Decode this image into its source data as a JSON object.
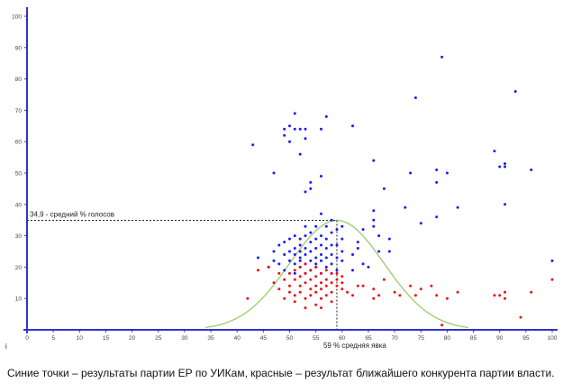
{
  "chart_data": {
    "type": "scatter",
    "title": "",
    "xlabel": "",
    "ylabel": "",
    "xlim": [
      0,
      100
    ],
    "ylim": [
      0,
      100
    ],
    "x_ticks": [
      0,
      5,
      10,
      15,
      20,
      25,
      30,
      35,
      40,
      45,
      50,
      55,
      60,
      65,
      70,
      75,
      80,
      85,
      90,
      95,
      100
    ],
    "y_ticks": [
      10,
      20,
      30,
      40,
      50,
      60,
      70,
      80,
      90,
      100
    ],
    "grid": false,
    "legend": "none",
    "colors": {
      "axis": "#3333cc",
      "blue": "#1a1aff",
      "red": "#ee1111",
      "curve": "#99cc66",
      "guide": "#222222"
    },
    "annotations": {
      "mean_vote_label": "34,9 - средний % голосов",
      "mean_vote_y": 34.9,
      "mean_turnout_label": "59 % средняя явка",
      "mean_turnout_x": 59,
      "corner_mark": "i"
    },
    "curve": {
      "mean": 59,
      "sd": 9,
      "peak": 34.9
    },
    "series": [
      {
        "color": "blue",
        "points": [
          [
            43,
            59
          ],
          [
            47,
            50
          ],
          [
            49,
            64
          ],
          [
            49,
            62
          ],
          [
            50,
            65
          ],
          [
            50,
            60
          ],
          [
            51,
            64
          ],
          [
            51,
            69
          ],
          [
            52,
            64
          ],
          [
            53,
            64
          ],
          [
            53,
            61
          ],
          [
            52,
            56
          ],
          [
            53,
            44
          ],
          [
            54,
            45
          ],
          [
            54,
            47
          ],
          [
            56,
            64
          ],
          [
            57,
            68
          ],
          [
            56,
            49
          ],
          [
            62,
            65
          ],
          [
            66,
            54
          ],
          [
            68,
            45
          ],
          [
            72,
            39
          ],
          [
            73,
            50
          ],
          [
            74,
            74
          ],
          [
            75,
            34
          ],
          [
            78,
            51
          ],
          [
            78,
            47
          ],
          [
            79,
            87
          ],
          [
            80,
            50
          ],
          [
            78,
            36
          ],
          [
            82,
            39
          ],
          [
            89,
            57
          ],
          [
            90,
            52
          ],
          [
            91,
            52
          ],
          [
            91,
            53
          ],
          [
            91,
            40
          ],
          [
            93,
            76
          ],
          [
            96,
            51
          ],
          [
            100,
            22
          ],
          [
            44,
            23
          ],
          [
            46,
            20
          ],
          [
            47,
            25
          ],
          [
            47,
            22
          ],
          [
            48,
            27
          ],
          [
            48,
            21
          ],
          [
            49,
            24
          ],
          [
            49,
            19
          ],
          [
            49,
            28
          ],
          [
            50,
            22
          ],
          [
            50,
            25
          ],
          [
            50,
            29
          ],
          [
            51,
            18
          ],
          [
            51,
            21
          ],
          [
            51,
            24
          ],
          [
            51,
            26
          ],
          [
            51,
            30
          ],
          [
            52,
            20
          ],
          [
            52,
            23
          ],
          [
            52,
            25
          ],
          [
            52,
            27
          ],
          [
            52,
            29
          ],
          [
            52,
            22
          ],
          [
            53,
            18
          ],
          [
            53,
            21
          ],
          [
            53,
            24
          ],
          [
            53,
            26
          ],
          [
            53,
            30
          ],
          [
            53,
            33
          ],
          [
            54,
            19
          ],
          [
            54,
            22
          ],
          [
            54,
            25
          ],
          [
            54,
            28
          ],
          [
            54,
            31
          ],
          [
            55,
            20
          ],
          [
            55,
            23
          ],
          [
            55,
            26
          ],
          [
            55,
            29
          ],
          [
            55,
            33
          ],
          [
            55,
            21
          ],
          [
            56,
            18
          ],
          [
            56,
            22
          ],
          [
            56,
            24
          ],
          [
            56,
            27
          ],
          [
            56,
            30
          ],
          [
            56,
            37
          ],
          [
            57,
            20
          ],
          [
            57,
            23
          ],
          [
            57,
            26
          ],
          [
            57,
            29
          ],
          [
            57,
            33
          ],
          [
            58,
            18
          ],
          [
            58,
            21
          ],
          [
            58,
            24
          ],
          [
            58,
            27
          ],
          [
            58,
            31
          ],
          [
            58,
            35
          ],
          [
            59,
            19
          ],
          [
            59,
            23
          ],
          [
            59,
            27
          ],
          [
            59,
            32
          ],
          [
            60,
            22
          ],
          [
            60,
            25
          ],
          [
            60,
            29
          ],
          [
            60,
            33
          ],
          [
            62,
            19
          ],
          [
            62,
            24
          ],
          [
            63,
            28
          ],
          [
            63,
            26
          ],
          [
            64,
            21
          ],
          [
            64,
            32
          ],
          [
            65,
            20
          ],
          [
            66,
            35
          ],
          [
            66,
            38
          ],
          [
            66,
            33
          ],
          [
            67,
            25
          ],
          [
            67,
            30
          ],
          [
            69,
            29
          ],
          [
            69,
            25
          ]
        ]
      },
      {
        "color": "red",
        "points": [
          [
            42,
            10
          ],
          [
            44,
            19
          ],
          [
            46,
            20
          ],
          [
            47,
            15
          ],
          [
            48,
            13
          ],
          [
            48,
            18
          ],
          [
            49,
            16
          ],
          [
            49,
            10
          ],
          [
            50,
            14
          ],
          [
            50,
            18
          ],
          [
            50,
            12
          ],
          [
            51,
            16
          ],
          [
            51,
            19
          ],
          [
            51,
            11
          ],
          [
            51,
            9
          ],
          [
            52,
            14
          ],
          [
            52,
            17
          ],
          [
            52,
            20
          ],
          [
            52,
            12
          ],
          [
            53,
            15
          ],
          [
            53,
            18
          ],
          [
            53,
            21
          ],
          [
            53,
            10
          ],
          [
            53,
            7
          ],
          [
            54,
            13
          ],
          [
            54,
            16
          ],
          [
            54,
            19
          ],
          [
            54,
            11
          ],
          [
            55,
            14
          ],
          [
            55,
            17
          ],
          [
            55,
            20
          ],
          [
            55,
            12
          ],
          [
            55,
            8
          ],
          [
            56,
            15
          ],
          [
            56,
            18
          ],
          [
            56,
            10
          ],
          [
            56,
            13
          ],
          [
            56,
            7
          ],
          [
            57,
            16
          ],
          [
            57,
            19
          ],
          [
            57,
            14
          ],
          [
            57,
            11
          ],
          [
            58,
            15
          ],
          [
            58,
            18
          ],
          [
            58,
            12
          ],
          [
            58,
            9
          ],
          [
            59,
            16
          ],
          [
            59,
            14
          ],
          [
            59,
            18
          ],
          [
            60,
            15
          ],
          [
            60,
            13
          ],
          [
            60,
            17
          ],
          [
            61,
            12
          ],
          [
            62,
            11
          ],
          [
            63,
            14
          ],
          [
            64,
            14
          ],
          [
            66,
            10
          ],
          [
            66,
            13
          ],
          [
            67,
            11
          ],
          [
            68,
            16
          ],
          [
            70,
            12
          ],
          [
            71,
            11
          ],
          [
            73,
            14
          ],
          [
            74,
            11
          ],
          [
            75,
            13
          ],
          [
            77,
            14
          ],
          [
            78,
            11
          ],
          [
            79,
            1.5
          ],
          [
            80,
            10
          ],
          [
            82,
            12
          ],
          [
            89,
            11
          ],
          [
            90,
            11
          ],
          [
            91,
            12
          ],
          [
            91,
            10
          ],
          [
            94,
            4
          ],
          [
            96,
            12
          ],
          [
            100,
            16
          ]
        ]
      }
    ]
  },
  "caption": "Синие точки – результаты партии ЕР по УИКам, красные – результат ближайшего конкурента партии власти."
}
